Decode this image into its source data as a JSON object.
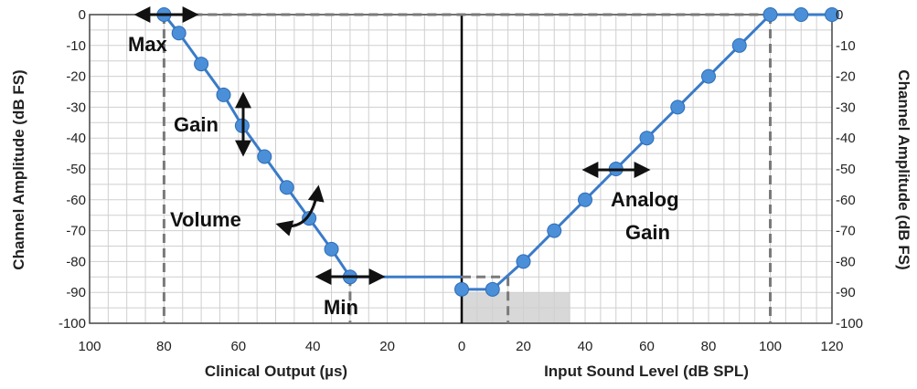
{
  "chart_data": {
    "type": "line",
    "ylabel_left": "Channel Amplitude (dB FS)",
    "ylabel_right": "Channel Amplitude (dB FS)",
    "xlabel_left": "Clinical Output (µs)",
    "xlabel_right": "Input Sound Level (dB SPL)",
    "y_range": [
      -100,
      0
    ],
    "y_ticks": [
      0,
      -10,
      -20,
      -30,
      -40,
      -50,
      -60,
      -70,
      -80,
      -90,
      -100
    ],
    "left_x_range": [
      100,
      0
    ],
    "left_x_ticks": [
      100,
      80,
      60,
      40,
      20,
      0
    ],
    "right_x_range": [
      0,
      120
    ],
    "right_x_ticks": [
      0,
      20,
      40,
      60,
      80,
      100,
      120
    ],
    "grid": true,
    "series": [
      {
        "panel": "left",
        "points": [
          {
            "x": 80,
            "y": 0
          },
          {
            "x": 76,
            "y": -6
          },
          {
            "x": 70,
            "y": -16
          },
          {
            "x": 64,
            "y": -26
          },
          {
            "x": 59,
            "y": -36
          },
          {
            "x": 53,
            "y": -46
          },
          {
            "x": 47,
            "y": -56
          },
          {
            "x": 41,
            "y": -66
          },
          {
            "x": 35,
            "y": -76
          },
          {
            "x": 30,
            "y": -85
          },
          {
            "x": 15,
            "y": -85
          },
          {
            "x": 0,
            "y": -85
          }
        ],
        "markers_until": 30
      },
      {
        "panel": "right",
        "points": [
          {
            "x": 0,
            "y": -89
          },
          {
            "x": 10,
            "y": -89
          },
          {
            "x": 20,
            "y": -80
          },
          {
            "x": 30,
            "y": -70
          },
          {
            "x": 40,
            "y": -60
          },
          {
            "x": 50,
            "y": -50
          },
          {
            "x": 60,
            "y": -40
          },
          {
            "x": 70,
            "y": -30
          },
          {
            "x": 80,
            "y": -20
          },
          {
            "x": 90,
            "y": -10
          },
          {
            "x": 100,
            "y": 0
          },
          {
            "x": 110,
            "y": 0
          },
          {
            "x": 120,
            "y": 0
          }
        ]
      }
    ],
    "reference_lines": [
      {
        "panel": "left",
        "type": "vertical",
        "x": 80
      },
      {
        "panel": "left",
        "type": "vertical",
        "x": 30
      },
      {
        "panel": "top",
        "type": "horizontal",
        "y": 0
      },
      {
        "panel": "right",
        "type": "vertical",
        "x": 100
      },
      {
        "panel": "right",
        "type": "vertical",
        "x": 15
      },
      {
        "panel": "right",
        "type": "horizontal-to-line",
        "y": -85
      }
    ],
    "shaded_region": {
      "panel": "right",
      "x": [
        0,
        35
      ],
      "y": [
        -100,
        -90
      ]
    },
    "annotations": [
      {
        "text": "Max",
        "arrow": "horizontal"
      },
      {
        "text": "Gain",
        "arrow": "vertical"
      },
      {
        "text": "Volume",
        "arrow": "curved"
      },
      {
        "text": "Min",
        "arrow": "horizontal"
      },
      {
        "text": "Analog",
        "arrow": "horizontal"
      },
      {
        "text": "Gain"
      }
    ],
    "colors": {
      "line": "#3a7bc8",
      "marker": "#4a8fd8",
      "reference": "#7a7a7a",
      "grid": "#cfcfcf",
      "shade": "#d8d8d8",
      "center": "#000000"
    }
  }
}
